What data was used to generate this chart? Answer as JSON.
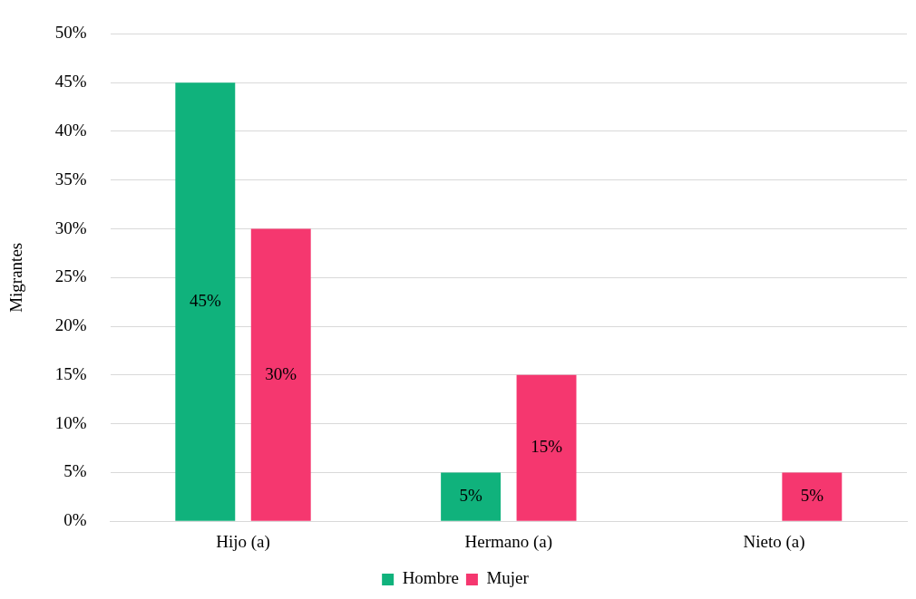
{
  "chart_data": {
    "type": "bar",
    "ylabel": "Migrantes",
    "categories": [
      "Hijo (a)",
      "Hermano (a)",
      "Nieto (a)"
    ],
    "series": [
      {
        "name": "Hombre",
        "color": "#10b27c",
        "values": [
          45,
          5,
          0
        ],
        "value_labels": [
          "45%",
          "5%",
          null
        ]
      },
      {
        "name": "Mujer",
        "color": "#f5376f",
        "values": [
          30,
          15,
          5
        ],
        "value_labels": [
          "30%",
          "15%",
          "5%"
        ]
      }
    ],
    "ylim": [
      0,
      50
    ],
    "yticks": [
      {
        "value": 0,
        "label": "0%"
      },
      {
        "value": 5,
        "label": "5%"
      },
      {
        "value": 10,
        "label": "10%"
      },
      {
        "value": 15,
        "label": "15%"
      },
      {
        "value": 20,
        "label": "20%"
      },
      {
        "value": 25,
        "label": "25%"
      },
      {
        "value": 30,
        "label": "30%"
      },
      {
        "value": 35,
        "label": "35%"
      },
      {
        "value": 40,
        "label": "40%"
      },
      {
        "value": 45,
        "label": "45%"
      },
      {
        "value": 50,
        "label": "50%"
      }
    ],
    "grid": "y",
    "legend": "bottom"
  }
}
